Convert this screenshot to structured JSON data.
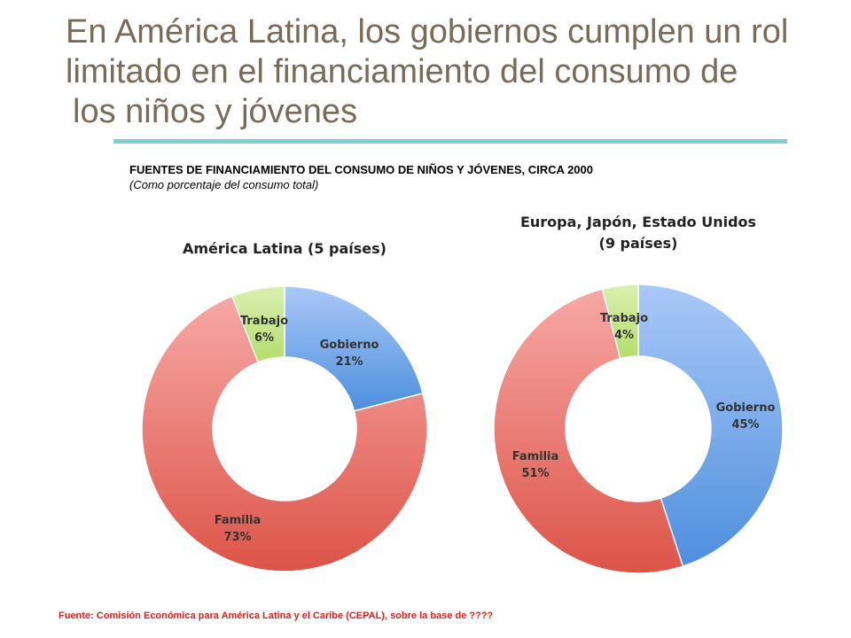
{
  "slide": {
    "title_lines": [
      "En América Latina, los gobiernos cumplen un rol",
      "limitado en el financiamiento del consumo de",
      "los niños y jóvenes"
    ],
    "figure_heading": "FUENTES DE FINANCIAMIENTO DEL CONSUMO DE NIÑOS Y JÓVENES, CIRCA 2000",
    "figure_subheading": "(Como porcentaje del consumo total)",
    "footer": "Fuente: Comisión Económica para América Latina y el Caribe (CEPAL), sobre la base de ????",
    "accent_color": "#7fcfd7",
    "title_color": "#7a6a58",
    "footer_color": "#e0201f"
  },
  "chart_data": [
    {
      "type": "pie",
      "donut": true,
      "title_lines": [
        "América Latina (5 países)"
      ],
      "slices": [
        {
          "label": "Gobierno",
          "value": 21,
          "display": "21%",
          "color_light": "#a9c8f7",
          "color_dark": "#4e8fde"
        },
        {
          "label": "Familia",
          "value": 73,
          "display": "73%",
          "color_light": "#f7a8a6",
          "color_dark": "#dc5448"
        },
        {
          "label": "Trabajo",
          "value": 6,
          "display": "6%",
          "color_light": "#d9f0b0",
          "color_dark": "#b5dc6e"
        }
      ]
    },
    {
      "type": "pie",
      "donut": true,
      "title_lines": [
        "Europa, Japón, Estado Unidos",
        "(9 países)"
      ],
      "slices": [
        {
          "label": "Gobierno",
          "value": 45,
          "display": "45%",
          "color_light": "#a9c8f7",
          "color_dark": "#4e8fde"
        },
        {
          "label": "Familia",
          "value": 51,
          "display": "51%",
          "color_light": "#f7a8a6",
          "color_dark": "#dc5448"
        },
        {
          "label": "Trabajo",
          "value": 4,
          "display": "4%",
          "color_light": "#d9f0b0",
          "color_dark": "#b5dc6e"
        }
      ]
    }
  ]
}
